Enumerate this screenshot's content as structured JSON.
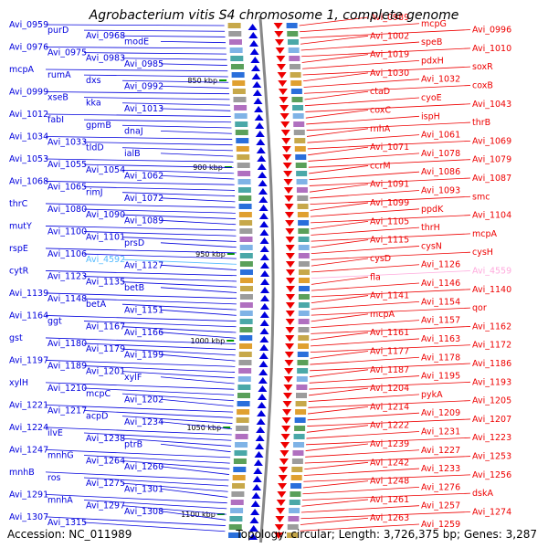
{
  "title": "Agrobacterium vitis S4 chromosome 1, complete genome",
  "footer": {
    "accession": "Accession: NC_011989",
    "stats": "Topology: circular; Length: 3,726,375 bp; Genes: 3,287"
  },
  "colors": {
    "plus_strand": "#0000dd",
    "minus_strand": "#ee0000",
    "highlight_plus": "#55bbff",
    "highlight_minus": "#ffaadd",
    "backbone": "#888888",
    "tick_mark": "#009900"
  },
  "scale_ticks": [
    "850 kbp",
    "900 kbp",
    "950 kbp",
    "1000 kbp",
    "1050 kbp",
    "1100 kbp"
  ],
  "left_labels": [
    "Avi_0959",
    "purD",
    "Avi_0968",
    "modE",
    "Avi_0976",
    "Avi_0975",
    "Avi_0983",
    "Avi_0985",
    "mcpA",
    "rumA",
    "dxs",
    "Avi_0992",
    "Avi_0999",
    "xseB",
    "kka",
    "Avi_1013",
    "Avi_1012",
    "fabI",
    "gpmB",
    "dnaJ",
    "Avi_1034",
    "Avi_1033",
    "tldD",
    "ialB",
    "Avi_1053",
    "Avi_1055",
    "Avi_1054",
    "Avi_1062",
    "Avi_1068",
    "Avi_1065",
    "rimJ",
    "Avi_1072",
    "thrC",
    "Avi_1080",
    "Avi_1090",
    "Avi_1089",
    "mutY",
    "Avi_1100",
    "Avi_1101",
    "prsD",
    "rspE",
    "Avi_1106",
    "Avi_4592",
    "Avi_1127",
    "cytR",
    "Avi_1123",
    "Avi_1135",
    "betB",
    "Avi_1139",
    "Avi_1148",
    "betA",
    "Avi_1151",
    "Avi_1164",
    "ggt",
    "Avi_1167",
    "Avi_1166",
    "gst",
    "Avi_1180",
    "Avi_1179",
    "Avi_1199",
    "Avi_1197",
    "Avi_1189",
    "Avi_1201",
    "xylF",
    "xylH",
    "Avi_1210",
    "mcpC",
    "Avi_1202",
    "Avi_1221",
    "Avi_1217",
    "acpD",
    "Avi_1234",
    "Avi_1224",
    "ilvE",
    "Avi_1238",
    "ptrB",
    "Avi_1247",
    "mnhG",
    "Avi_1264",
    "Avi_1260",
    "mnhB",
    "ros",
    "Avi_1275",
    "Avi_1301",
    "Avi_1291",
    "mnhA",
    "Avi_1297",
    "Avi_1308",
    "Avi_1307",
    "Avi_1315"
  ],
  "right_labels": [
    "Avi_0989",
    "mcpG",
    "Avi_0996",
    "Avi_1002",
    "speB",
    "Avi_1010",
    "Avi_1019",
    "pdxH",
    "soxR",
    "Avi_1030",
    "Avi_1032",
    "coxB",
    "ctaD",
    "cyoE",
    "Avi_1043",
    "coxC",
    "ispH",
    "thrB",
    "rnhA",
    "Avi_1061",
    "Avi_1069",
    "Avi_1071",
    "Avi_1078",
    "Avi_1079",
    "ccrM",
    "Avi_1086",
    "Avi_1087",
    "Avi_1091",
    "Avi_1093",
    "smc",
    "Avi_1099",
    "ppdK",
    "Avi_1104",
    "Avi_1105",
    "thrH",
    "mcpA",
    "Avi_1115",
    "cysN",
    "cysH",
    "cysD",
    "Avi_1126",
    "Avi_4559",
    "fla",
    "Avi_1146",
    "Avi_1140",
    "Avi_1141",
    "Avi_1154",
    "qor",
    "mcpA",
    "Avi_1157",
    "Avi_1162",
    "Avi_1161",
    "Avi_1163",
    "Avi_1172",
    "Avi_1177",
    "Avi_1178",
    "Avi_1186",
    "Avi_1187",
    "Avi_1195",
    "Avi_1193",
    "Avi_1204",
    "pykA",
    "Avi_1205",
    "Avi_1214",
    "Avi_1209",
    "Avi_1207",
    "Avi_1222",
    "Avi_1231",
    "Avi_1223",
    "Avi_1239",
    "Avi_1227",
    "Avi_1253",
    "Avi_1242",
    "Avi_1233",
    "Avi_1256",
    "Avi_1248",
    "Avi_1276",
    "dskA",
    "Avi_1261",
    "Avi_1257",
    "Avi_1274",
    "Avi_1263",
    "Avi_1259"
  ]
}
